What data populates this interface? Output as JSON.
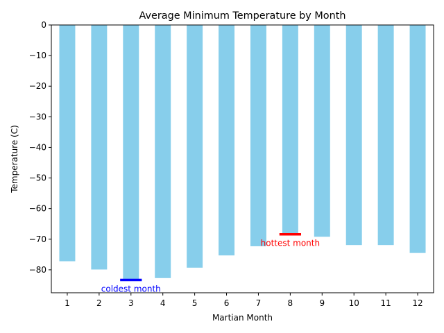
{
  "chart_data": {
    "type": "bar",
    "title": "Average Minimum Temperature by Month",
    "xlabel": "Martian Month",
    "ylabel": "Temperature (C)",
    "categories": [
      "1",
      "2",
      "3",
      "4",
      "5",
      "6",
      "7",
      "8",
      "9",
      "10",
      "11",
      "12"
    ],
    "values": [
      -77.2,
      -79.9,
      -83.3,
      -82.7,
      -79.3,
      -75.3,
      -72.3,
      -68.4,
      -69.2,
      -71.9,
      -71.9,
      -74.5
    ],
    "ylim": [
      -87.5,
      0
    ],
    "yticks": [
      0,
      -10,
      -20,
      -30,
      -40,
      -50,
      -60,
      -70,
      -80
    ],
    "bar_color": "#87ceeb",
    "grid": false,
    "annotations": [
      {
        "text": "coldest month",
        "category": "3",
        "value": -83.3,
        "color": "#0000ff"
      },
      {
        "text": "hottest month",
        "category": "8",
        "value": -68.4,
        "color": "#ff0000"
      }
    ]
  }
}
